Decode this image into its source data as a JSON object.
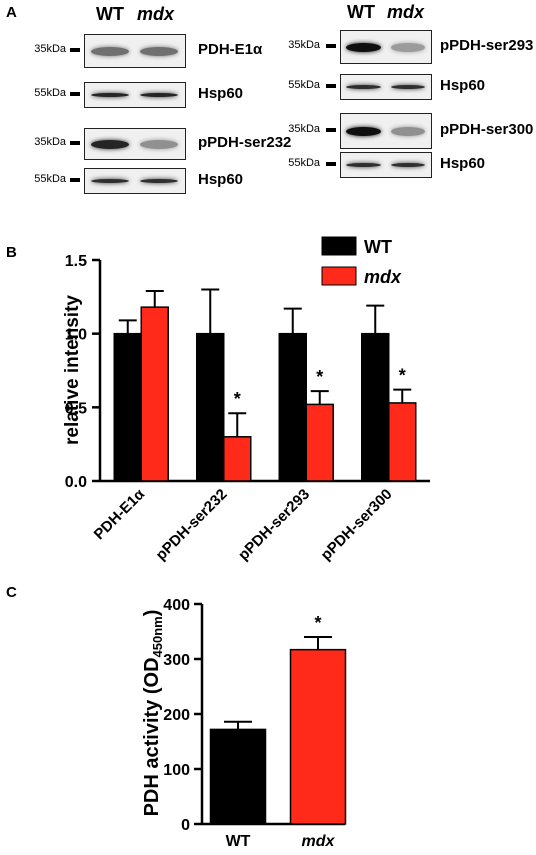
{
  "panel_a": {
    "letter": "A",
    "left_header": {
      "wt": "WT",
      "mdx": "mdx"
    },
    "right_header": {
      "wt": "WT",
      "mdx": "mdx"
    },
    "blots": [
      {
        "kda": "35kDa",
        "label": "PDH-E1α",
        "wt_intensity": 0.55,
        "mdx_intensity": 0.55
      },
      {
        "kda": "55kDa",
        "label": "Hsp60",
        "wt_intensity": 0.9,
        "mdx_intensity": 0.9
      },
      {
        "kda": "35kDa",
        "label": "pPDH-ser232",
        "wt_intensity": 0.9,
        "mdx_intensity": 0.4
      },
      {
        "kda": "55kDa",
        "label": "Hsp60",
        "wt_intensity": 0.85,
        "mdx_intensity": 0.85
      },
      {
        "kda": "35kDa",
        "label": "pPDH-ser293",
        "wt_intensity": 1.0,
        "mdx_intensity": 0.35
      },
      {
        "kda": "55kDa",
        "label": "Hsp60",
        "wt_intensity": 0.85,
        "mdx_intensity": 0.85
      },
      {
        "kda": "35kDa",
        "label": "pPDH-ser300",
        "wt_intensity": 1.0,
        "mdx_intensity": 0.4
      },
      {
        "kda": "55kDa",
        "label": "Hsp60",
        "wt_intensity": 0.85,
        "mdx_intensity": 0.85
      }
    ]
  },
  "chart_data": [
    {
      "panel": "B",
      "type": "bar",
      "ylabel": "relative intensity",
      "ylim": [
        0.0,
        1.5
      ],
      "yticks": [
        "0.0",
        "0.5",
        "1.0",
        "1.5"
      ],
      "categories": [
        "PDH-E1α",
        "pPDH-ser232",
        "pPDH-ser293",
        "pPDH-ser300"
      ],
      "series": [
        {
          "name": "WT",
          "color": "#000000",
          "values": [
            1.0,
            1.0,
            1.0,
            1.0
          ],
          "errors": [
            0.09,
            0.3,
            0.17,
            0.19
          ]
        },
        {
          "name": "mdx",
          "color": "#ff2a1a",
          "values": [
            1.18,
            0.3,
            0.52,
            0.53
          ],
          "errors": [
            0.11,
            0.16,
            0.09,
            0.09
          ]
        }
      ],
      "significance": [
        "",
        "*",
        "*",
        "*"
      ],
      "legend_position": "top-right"
    },
    {
      "panel": "C",
      "type": "bar",
      "ylabel_main": "PDH activity (OD",
      "ylabel_sub": "450nm",
      "ylabel_end": ")",
      "ylim": [
        0,
        400
      ],
      "yticks": [
        "0",
        "100",
        "200",
        "300",
        "400"
      ],
      "categories": [
        "WT",
        "mdx"
      ],
      "values": [
        172,
        317
      ],
      "errors": [
        14,
        23
      ],
      "colors": [
        "#000000",
        "#ff2a1a"
      ],
      "significance": [
        "",
        "*"
      ]
    }
  ],
  "panel_b_letter": "B",
  "panel_c_letter": "C"
}
